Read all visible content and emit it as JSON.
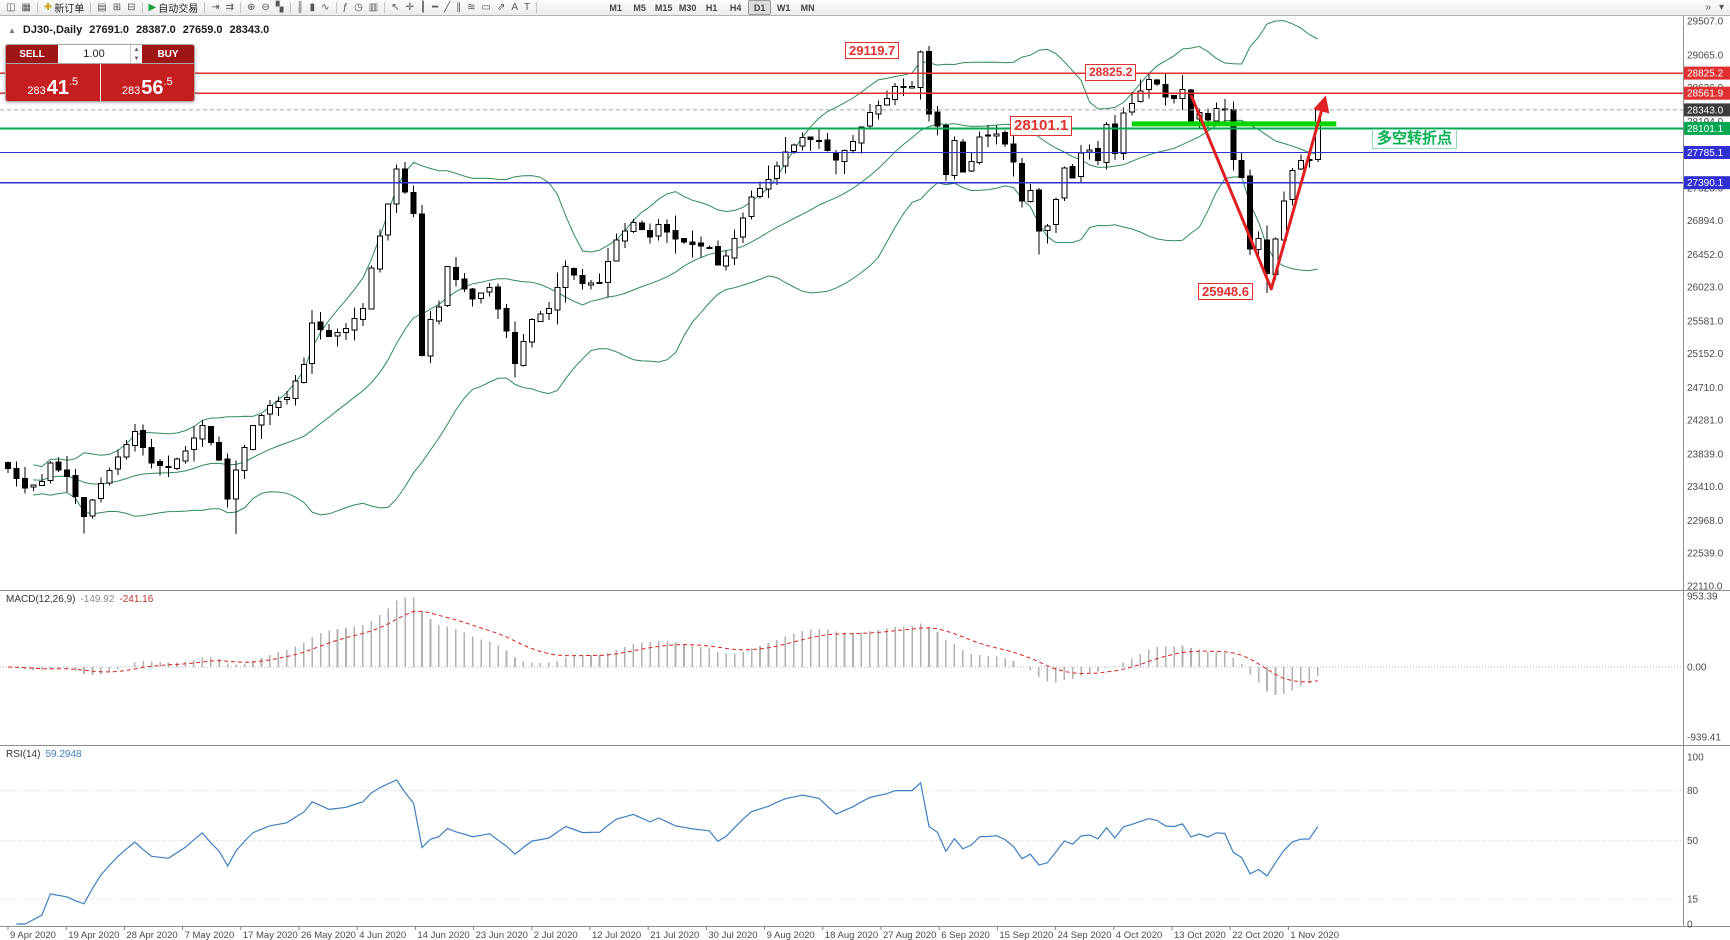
{
  "toolbar": {
    "items": [
      {
        "name": "new-chart-button",
        "glyph": "◫"
      },
      {
        "name": "chart-profiles-button",
        "glyph": "▦"
      },
      {
        "type": "sep"
      },
      {
        "name": "new-order-button",
        "glyph": "✚",
        "color": "#d4a017",
        "label": "新订单"
      },
      {
        "type": "sep"
      },
      {
        "name": "market-watch-button",
        "glyph": "▤"
      },
      {
        "name": "data-window-button",
        "glyph": "⊞"
      },
      {
        "name": "navigator-button",
        "glyph": "⊟"
      },
      {
        "type": "sep"
      },
      {
        "name": "auto-trading-button",
        "glyph": "▶",
        "color": "#1e9e40",
        "label": "自动交易"
      },
      {
        "type": "sep"
      },
      {
        "name": "chart-shift-button",
        "glyph": "⇥"
      },
      {
        "name": "auto-scroll-button",
        "glyph": "⇉"
      },
      {
        "type": "sep"
      },
      {
        "name": "zoom-in-button",
        "glyph": "⊕"
      },
      {
        "name": "zoom-out-button",
        "glyph": "⊖"
      },
      {
        "name": "tile-windows-button",
        "glyph": "▚"
      },
      {
        "type": "sep"
      },
      {
        "name": "bar-chart-button",
        "glyph": "║"
      },
      {
        "name": "candlestick-chart-button",
        "glyph": "▮"
      },
      {
        "name": "line-chart-button",
        "glyph": "∿"
      },
      {
        "type": "sep"
      },
      {
        "name": "indicators-button",
        "glyph": "ƒ"
      },
      {
        "name": "periods-button",
        "glyph": "◷"
      },
      {
        "name": "templates-button",
        "glyph": "▥"
      },
      {
        "type": "sep"
      },
      {
        "name": "cursor-button",
        "glyph": "↖"
      },
      {
        "name": "crosshair-button",
        "glyph": "✛"
      },
      {
        "name": "vertical-line-button",
        "glyph": "┃"
      },
      {
        "name": "horizontal-line-button",
        "glyph": "━"
      },
      {
        "name": "trendline-button",
        "glyph": "╱"
      },
      {
        "name": "channel-button",
        "glyph": "∥"
      },
      {
        "name": "fibonacci-button",
        "glyph": "≋"
      },
      {
        "name": "shapes-button",
        "glyph": "▭"
      },
      {
        "name": "arrows-button",
        "glyph": "⇗"
      },
      {
        "name": "text-button",
        "glyph": "A"
      },
      {
        "name": "text-label-button",
        "glyph": "T"
      },
      {
        "type": "sep"
      }
    ],
    "timeframes": [
      "M1",
      "M5",
      "M15",
      "M30",
      "H1",
      "H4",
      "D1",
      "W1",
      "MN"
    ],
    "active_timeframe": "D1",
    "right_icons": [
      {
        "name": "toolbar-customize-button",
        "glyph": "»"
      },
      {
        "name": "toolbar-menu-button",
        "glyph": "▾"
      }
    ]
  },
  "symbol_line": {
    "icon": "▲",
    "symbol": "DJ30-,Daily",
    "open": "27691.0",
    "high": "28387.0",
    "low": "27659.0",
    "close": "28343.0"
  },
  "trade_panel": {
    "sell_label": "SELL",
    "buy_label": "BUY",
    "volume": "1.00",
    "sell_price": "28341.5",
    "buy_price": "28356.5",
    "sell": {
      "prefix": "283",
      "pips": "41",
      "point": ".5"
    },
    "buy": {
      "prefix": "283",
      "pips": "56",
      "point": ".5"
    }
  },
  "price_axis": {
    "labels": [
      "29507.0",
      "29065.0",
      "28636.0",
      "28194.0",
      "27752.0",
      "27323.0",
      "26894.0",
      "26452.0",
      "26023.0",
      "25581.0",
      "25152.0",
      "24710.0",
      "24281.0",
      "23839.0",
      "23410.0",
      "22968.0",
      "22539.0",
      "22110.0"
    ],
    "tags": [
      {
        "value": "28825.2",
        "bg": "#e03030"
      },
      {
        "value": "28561.9",
        "bg": "#e03030"
      },
      {
        "value": "28343.0",
        "bg": "#3c3c3c"
      },
      {
        "value": "28101.1",
        "bg": "#00a651"
      },
      {
        "value": "27785.1",
        "bg": "#2f2fd3"
      },
      {
        "value": "27390.1",
        "bg": "#2f2fd3"
      }
    ]
  },
  "objects": {
    "hlines": [
      {
        "price": 28825.2,
        "color": "#e03030",
        "width": 1.4
      },
      {
        "price": 28561.9,
        "color": "#e03030",
        "width": 1.4
      },
      {
        "price": 28101.1,
        "color": "#00a651",
        "width": 2
      },
      {
        "price": 27785.1,
        "color": "#2f2fd3",
        "width": 1.4
      },
      {
        "price": 27390.1,
        "color": "#2f2fd3",
        "width": 1.4
      }
    ],
    "bid_line": {
      "price": 28343.0,
      "color": "#a5a5a5"
    },
    "green_segment": {
      "i1": 133,
      "i2": 157.2,
      "price": 28160,
      "color": "#00d500",
      "width": 5
    },
    "arrow": {
      "points": [
        [
          140,
          28540
        ],
        [
          149.5,
          26000
        ],
        [
          155.8,
          28470
        ]
      ],
      "color": "#e02020",
      "width": 3
    }
  },
  "annotations": [
    {
      "text": "29119.7"
    },
    {
      "text": "28825.2"
    },
    {
      "text": "28101.1"
    },
    {
      "text": "25948.6"
    },
    {
      "text": "多空转折点"
    }
  ],
  "macd": {
    "label": "MACD(12,26,9)",
    "value": "-149.92",
    "signal_value": "-241.16",
    "axis": [
      "953.39",
      "0.00",
      "-939.41"
    ]
  },
  "rsi": {
    "label": "RSI(14)",
    "value": "59.2948",
    "axis": [
      "100",
      "80",
      "50",
      "15",
      "0"
    ],
    "levels": [
      80,
      50,
      15
    ]
  },
  "date_axis": [
    "9 Apr 2020",
    "19 Apr 2020",
    "28 Apr 2020",
    "7 May 2020",
    "17 May 2020",
    "26 May 2020",
    "4 Jun 2020",
    "14 Jun 2020",
    "23 Jun 2020",
    "2 Jul 2020",
    "12 Jul 2020",
    "21 Jul 2020",
    "30 Jul 2020",
    "9 Aug 2020",
    "18 Aug 2020",
    "27 Aug 2020",
    "6 Sep 2020",
    "15 Sep 2020",
    "24 Sep 2020",
    "4 Oct 2020",
    "13 Oct 2020",
    "22 Oct 2020",
    "1 Nov 2020"
  ],
  "colors": {
    "bollinger": "#2e8b57",
    "macd_hist": "#b2b2b2",
    "macd_signal": "#d82222",
    "rsi_line": "#3f7fbf",
    "candle_up": "#ffffff",
    "candle_down": "#000000",
    "accent_red": "#e03030",
    "accent_green": "#00a651",
    "accent_blue": "#2f2fd3",
    "tag_current": "#3c3c3c",
    "trade_red": "#c41e1e"
  },
  "chart_data": {
    "type": "candlestick",
    "symbol": "DJ30-",
    "timeframe": "Daily",
    "title": "DJ30-,Daily",
    "price_range": {
      "top": 29507.0,
      "bottom": 22110.0
    },
    "candle_count": 156,
    "current_bar": {
      "open": 27691.0,
      "high": 28387.0,
      "low": 27659.0,
      "close": 28343.0
    },
    "close_anchors": [
      [
        0,
        23650
      ],
      [
        2,
        23390
      ],
      [
        4,
        23480
      ],
      [
        5,
        23720
      ],
      [
        7,
        23540
      ],
      [
        9,
        23020
      ],
      [
        11,
        23450
      ],
      [
        13,
        23800
      ],
      [
        15,
        24130
      ],
      [
        17,
        23720
      ],
      [
        19,
        23660
      ],
      [
        21,
        23880
      ],
      [
        23,
        24210
      ],
      [
        25,
        23760
      ],
      [
        26,
        23250
      ],
      [
        27,
        23630
      ],
      [
        29,
        24210
      ],
      [
        31,
        24470
      ],
      [
        33,
        24580
      ],
      [
        35,
        25010
      ],
      [
        36,
        25550
      ],
      [
        38,
        25380
      ],
      [
        40,
        25480
      ],
      [
        42,
        25740
      ],
      [
        43,
        26270
      ],
      [
        45,
        27110
      ],
      [
        46,
        27570
      ],
      [
        47,
        27270
      ],
      [
        48,
        26990
      ],
      [
        49,
        25130
      ],
      [
        50,
        25600
      ],
      [
        51,
        25760
      ],
      [
        52,
        26290
      ],
      [
        53,
        26120
      ],
      [
        55,
        25870
      ],
      [
        57,
        26020
      ],
      [
        59,
        25450
      ],
      [
        60,
        25020
      ],
      [
        62,
        25600
      ],
      [
        64,
        25740
      ],
      [
        66,
        26290
      ],
      [
        68,
        26070
      ],
      [
        70,
        26080
      ],
      [
        72,
        26640
      ],
      [
        74,
        26870
      ],
      [
        76,
        26680
      ],
      [
        77,
        26840
      ],
      [
        79,
        26650
      ],
      [
        81,
        26580
      ],
      [
        83,
        26540
      ],
      [
        84,
        26310
      ],
      [
        85,
        26430
      ],
      [
        86,
        26660
      ],
      [
        88,
        27200
      ],
      [
        90,
        27430
      ],
      [
        92,
        27790
      ],
      [
        94,
        27980
      ],
      [
        96,
        27930
      ],
      [
        98,
        27690
      ],
      [
        100,
        27930
      ],
      [
        102,
        28310
      ],
      [
        104,
        28490
      ],
      [
        105,
        28650
      ],
      [
        107,
        28650
      ],
      [
        108,
        29100
      ],
      [
        109,
        28290
      ],
      [
        110,
        28130
      ],
      [
        111,
        27500
      ],
      [
        112,
        27940
      ],
      [
        113,
        27530
      ],
      [
        114,
        27670
      ],
      [
        115,
        27990
      ],
      [
        116,
        28000
      ],
      [
        117,
        28030
      ],
      [
        118,
        27900
      ],
      [
        119,
        27660
      ],
      [
        120,
        27150
      ],
      [
        121,
        27290
      ],
      [
        122,
        26760
      ],
      [
        123,
        26820
      ],
      [
        124,
        27170
      ],
      [
        125,
        27580
      ],
      [
        126,
        27450
      ],
      [
        127,
        27780
      ],
      [
        128,
        27820
      ],
      [
        129,
        27680
      ],
      [
        130,
        28150
      ],
      [
        131,
        27770
      ],
      [
        132,
        28300
      ],
      [
        133,
        28430
      ],
      [
        134,
        28590
      ],
      [
        135,
        28740
      ],
      [
        136,
        28680
      ],
      [
        137,
        28510
      ],
      [
        138,
        28490
      ],
      [
        139,
        28610
      ],
      [
        140,
        28200
      ],
      [
        141,
        28310
      ],
      [
        142,
        28210
      ],
      [
        143,
        28360
      ],
      [
        144,
        28340
      ],
      [
        145,
        27690
      ],
      [
        146,
        27460
      ],
      [
        147,
        26520
      ],
      [
        148,
        26660
      ],
      [
        149,
        26200
      ],
      [
        150,
        26650
      ],
      [
        151,
        27150
      ],
      [
        152,
        27550
      ],
      [
        153,
        27680
      ],
      [
        154,
        27691
      ],
      [
        155,
        28343
      ]
    ],
    "pinned_extremes": [
      {
        "i": 9,
        "low": 22800
      },
      {
        "i": 27,
        "low": 22790
      },
      {
        "i": 46,
        "high": 27630
      },
      {
        "i": 108,
        "high": 29119.7
      },
      {
        "i": 122,
        "low": 26452
      },
      {
        "i": 135,
        "high": 28825.2
      },
      {
        "i": 149,
        "low": 25948.6
      }
    ],
    "key_levels": [
      29119.7,
      28825.2,
      28561.9,
      28343.0,
      28101.1,
      27785.1,
      27390.1,
      25948.6
    ],
    "indicators": [
      {
        "name": "Bollinger Bands",
        "period": 20,
        "deviation": 2
      },
      {
        "name": "MACD",
        "fast": 12,
        "slow": 26,
        "signal": 9,
        "current": -149.92,
        "current_signal": -241.16
      },
      {
        "name": "RSI",
        "period": 14,
        "current": 59.2948
      }
    ]
  }
}
